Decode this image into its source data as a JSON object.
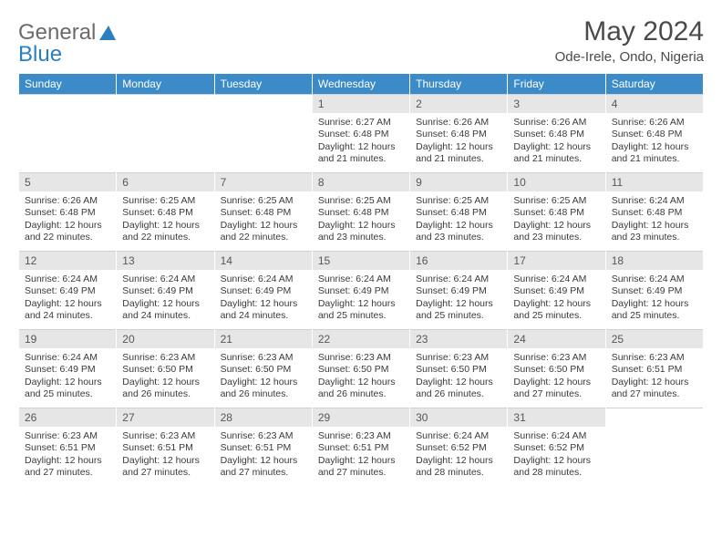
{
  "logo": {
    "text1": "General",
    "text2": "Blue"
  },
  "title": "May 2024",
  "location": "Ode-Irele, Ondo, Nigeria",
  "colors": {
    "header_bg": "#3b8bc9",
    "header_text": "#ffffff",
    "daynum_bg": "#e6e6e6",
    "text": "#3a3a3a",
    "logo_gray": "#6b6b6b",
    "logo_blue": "#2b7fbf"
  },
  "day_headers": [
    "Sunday",
    "Monday",
    "Tuesday",
    "Wednesday",
    "Thursday",
    "Friday",
    "Saturday"
  ],
  "weeks": [
    [
      null,
      null,
      null,
      {
        "n": "1",
        "sr": "6:27 AM",
        "ss": "6:48 PM",
        "dl": "12 hours and 21 minutes."
      },
      {
        "n": "2",
        "sr": "6:26 AM",
        "ss": "6:48 PM",
        "dl": "12 hours and 21 minutes."
      },
      {
        "n": "3",
        "sr": "6:26 AM",
        "ss": "6:48 PM",
        "dl": "12 hours and 21 minutes."
      },
      {
        "n": "4",
        "sr": "6:26 AM",
        "ss": "6:48 PM",
        "dl": "12 hours and 21 minutes."
      }
    ],
    [
      {
        "n": "5",
        "sr": "6:26 AM",
        "ss": "6:48 PM",
        "dl": "12 hours and 22 minutes."
      },
      {
        "n": "6",
        "sr": "6:25 AM",
        "ss": "6:48 PM",
        "dl": "12 hours and 22 minutes."
      },
      {
        "n": "7",
        "sr": "6:25 AM",
        "ss": "6:48 PM",
        "dl": "12 hours and 22 minutes."
      },
      {
        "n": "8",
        "sr": "6:25 AM",
        "ss": "6:48 PM",
        "dl": "12 hours and 23 minutes."
      },
      {
        "n": "9",
        "sr": "6:25 AM",
        "ss": "6:48 PM",
        "dl": "12 hours and 23 minutes."
      },
      {
        "n": "10",
        "sr": "6:25 AM",
        "ss": "6:48 PM",
        "dl": "12 hours and 23 minutes."
      },
      {
        "n": "11",
        "sr": "6:24 AM",
        "ss": "6:48 PM",
        "dl": "12 hours and 23 minutes."
      }
    ],
    [
      {
        "n": "12",
        "sr": "6:24 AM",
        "ss": "6:49 PM",
        "dl": "12 hours and 24 minutes."
      },
      {
        "n": "13",
        "sr": "6:24 AM",
        "ss": "6:49 PM",
        "dl": "12 hours and 24 minutes."
      },
      {
        "n": "14",
        "sr": "6:24 AM",
        "ss": "6:49 PM",
        "dl": "12 hours and 24 minutes."
      },
      {
        "n": "15",
        "sr": "6:24 AM",
        "ss": "6:49 PM",
        "dl": "12 hours and 25 minutes."
      },
      {
        "n": "16",
        "sr": "6:24 AM",
        "ss": "6:49 PM",
        "dl": "12 hours and 25 minutes."
      },
      {
        "n": "17",
        "sr": "6:24 AM",
        "ss": "6:49 PM",
        "dl": "12 hours and 25 minutes."
      },
      {
        "n": "18",
        "sr": "6:24 AM",
        "ss": "6:49 PM",
        "dl": "12 hours and 25 minutes."
      }
    ],
    [
      {
        "n": "19",
        "sr": "6:24 AM",
        "ss": "6:49 PM",
        "dl": "12 hours and 25 minutes."
      },
      {
        "n": "20",
        "sr": "6:23 AM",
        "ss": "6:50 PM",
        "dl": "12 hours and 26 minutes."
      },
      {
        "n": "21",
        "sr": "6:23 AM",
        "ss": "6:50 PM",
        "dl": "12 hours and 26 minutes."
      },
      {
        "n": "22",
        "sr": "6:23 AM",
        "ss": "6:50 PM",
        "dl": "12 hours and 26 minutes."
      },
      {
        "n": "23",
        "sr": "6:23 AM",
        "ss": "6:50 PM",
        "dl": "12 hours and 26 minutes."
      },
      {
        "n": "24",
        "sr": "6:23 AM",
        "ss": "6:50 PM",
        "dl": "12 hours and 27 minutes."
      },
      {
        "n": "25",
        "sr": "6:23 AM",
        "ss": "6:51 PM",
        "dl": "12 hours and 27 minutes."
      }
    ],
    [
      {
        "n": "26",
        "sr": "6:23 AM",
        "ss": "6:51 PM",
        "dl": "12 hours and 27 minutes."
      },
      {
        "n": "27",
        "sr": "6:23 AM",
        "ss": "6:51 PM",
        "dl": "12 hours and 27 minutes."
      },
      {
        "n": "28",
        "sr": "6:23 AM",
        "ss": "6:51 PM",
        "dl": "12 hours and 27 minutes."
      },
      {
        "n": "29",
        "sr": "6:23 AM",
        "ss": "6:51 PM",
        "dl": "12 hours and 27 minutes."
      },
      {
        "n": "30",
        "sr": "6:24 AM",
        "ss": "6:52 PM",
        "dl": "12 hours and 28 minutes."
      },
      {
        "n": "31",
        "sr": "6:24 AM",
        "ss": "6:52 PM",
        "dl": "12 hours and 28 minutes."
      },
      null
    ]
  ],
  "labels": {
    "sunrise": "Sunrise: ",
    "sunset": "Sunset: ",
    "daylight": "Daylight: "
  }
}
